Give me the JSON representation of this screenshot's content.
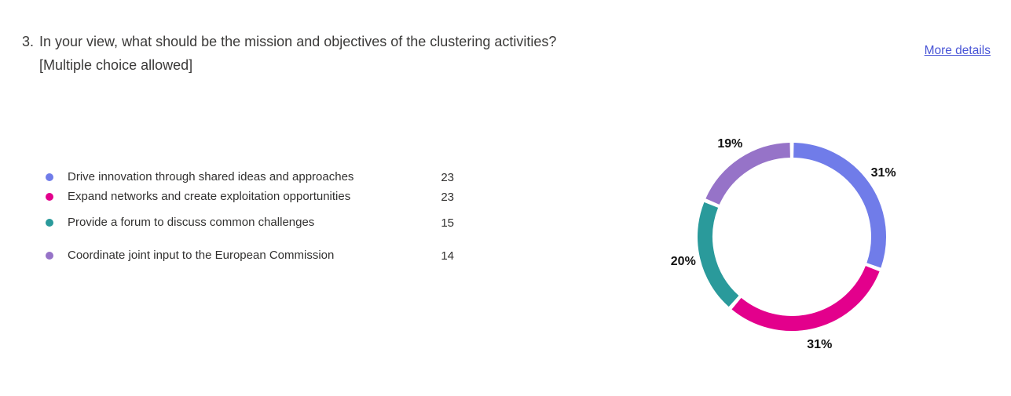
{
  "header": {
    "question_number": "3.",
    "question_title": "In your view, what should be the mission and objectives of the clustering activities?",
    "question_note": "[Multiple choice allowed]",
    "more_details_label": "More details"
  },
  "colors": {
    "link": "#4955d6",
    "text": "#323130",
    "percent_label": "#111111"
  },
  "chart_data": {
    "type": "pie",
    "donut": true,
    "legend_position": "left",
    "start_angle_deg": 0,
    "direction": "clockwise",
    "items": [
      {
        "label": "Drive innovation through shared ideas and approaches",
        "value": 23,
        "percent": "31%",
        "color": "#707CE9"
      },
      {
        "label": "Expand networks and create exploitation opportunities",
        "value": 23,
        "percent": "31%",
        "color": "#E3008C"
      },
      {
        "label": "Provide a forum to discuss common challenges",
        "value": 15,
        "percent": "20%",
        "color": "#2A9A9B"
      },
      {
        "label": "Coordinate joint input to the European Commission",
        "value": 14,
        "percent": "19%",
        "color": "#9673C8"
      }
    ]
  }
}
